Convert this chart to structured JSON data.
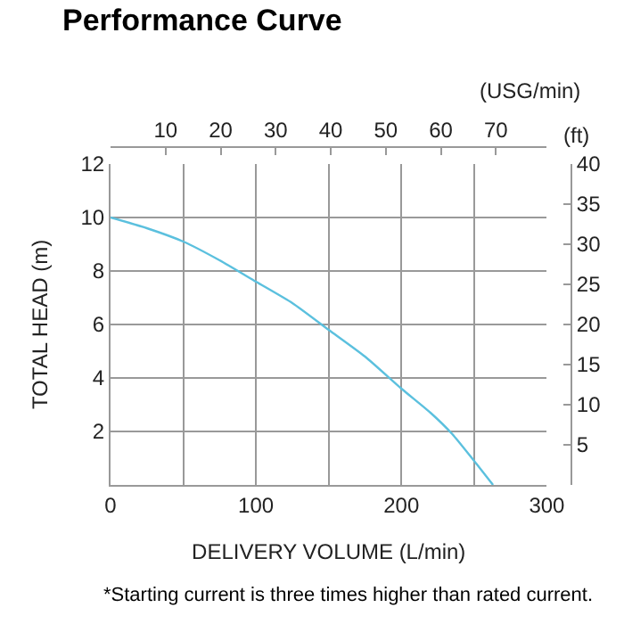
{
  "chart_data": {
    "type": "line",
    "title": "Performance Curve",
    "xlabel": "DELIVERY VOLUME (L/min)",
    "ylabel": "TOTAL HEAD (m)",
    "x2label": "(USG/min)",
    "y2label": "(ft)",
    "annotations": [
      "*Starting current is three times higher than rated current."
    ],
    "series": [
      {
        "color": "#5bc0de",
        "x": [
          0,
          25,
          50,
          75,
          100,
          125,
          150,
          175,
          200,
          220,
          235,
          250,
          263
        ],
        "values": [
          10,
          9.6,
          9.1,
          8.4,
          7.6,
          6.8,
          5.8,
          4.8,
          3.6,
          2.7,
          1.9,
          0.9,
          0
        ]
      }
    ],
    "xlim": [
      0,
      300
    ],
    "xticks": [
      0,
      {
        "value": 50,
        "label": null
      },
      100,
      {
        "value": 150,
        "label": null
      },
      200,
      {
        "value": 250,
        "label": null
      },
      300
    ],
    "ylim": [
      0,
      12
    ],
    "yticks": [
      {
        "value": 0,
        "label": null
      },
      2,
      4,
      6,
      8,
      10,
      12
    ],
    "x2lim": [
      0,
      79.25
    ],
    "x2ticks": [
      10,
      20,
      30,
      40,
      50,
      60,
      70
    ],
    "y2lim": [
      0,
      40
    ],
    "y2ticks": [
      5,
      10,
      15,
      20,
      25,
      30,
      35,
      40
    ],
    "grid": true,
    "marker": "none",
    "line_style": "solid"
  }
}
